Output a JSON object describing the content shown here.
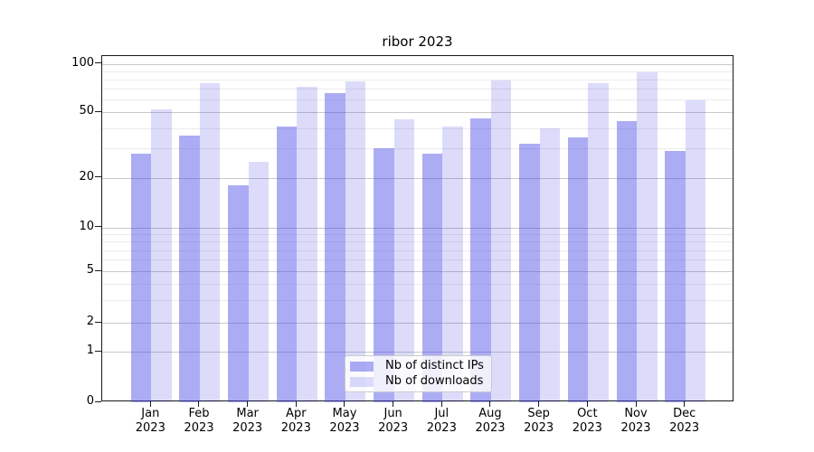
{
  "title": "ribor 2023",
  "legend": {
    "items": [
      {
        "label": "Nb of distinct IPs",
        "color": "rgba(70,70,230,0.45)"
      },
      {
        "label": "Nb of downloads",
        "color": "rgba(70,70,230,0.19)"
      }
    ],
    "position": "lower center"
  },
  "axes": {
    "y_tick_labels": [
      "100",
      "50",
      "20",
      "10",
      "5",
      "2",
      "1",
      "0"
    ],
    "x_month_labels": [
      "Jan",
      "Feb",
      "Mar",
      "Apr",
      "May",
      "Jun",
      "Jul",
      "Aug",
      "Sep",
      "Oct",
      "Nov",
      "Dec"
    ],
    "x_year_label": "2023"
  },
  "chart_data": {
    "type": "bar",
    "title": "ribor 2023",
    "categories": [
      "Jan 2023",
      "Feb 2023",
      "Mar 2023",
      "Apr 2023",
      "May 2023",
      "Jun 2023",
      "Jul 2023",
      "Aug 2023",
      "Sep 2023",
      "Oct 2023",
      "Nov 2023",
      "Dec 2023"
    ],
    "series": [
      {
        "name": "Nb of distinct IPs",
        "color": "rgba(70,70,230,0.45)",
        "values": [
          28,
          36,
          18,
          41,
          66,
          30,
          28,
          46,
          32,
          35,
          44,
          29
        ]
      },
      {
        "name": "Nb of downloads",
        "color": "rgba(70,70,230,0.19)",
        "values": [
          52,
          76,
          25,
          72,
          78,
          45,
          41,
          79,
          40,
          76,
          88,
          59
        ]
      }
    ],
    "xlabel": "",
    "ylabel": "",
    "yscale": "log-like",
    "y_major_ticks": [
      0,
      1,
      2,
      5,
      10,
      20,
      50,
      100
    ],
    "y_minor_ticks": [
      3,
      4,
      6,
      7,
      8,
      9,
      30,
      40,
      60,
      70,
      80,
      90
    ],
    "ylim": [
      0,
      110
    ],
    "grid": "horizontal major+minor",
    "legend_position": "lower center"
  }
}
